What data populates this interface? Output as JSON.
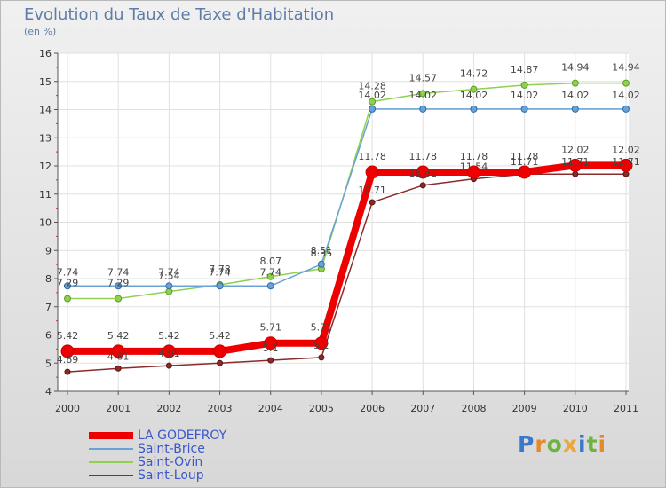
{
  "title": "Evolution du Taux de Taxe d'Habitation",
  "subtitle": "(en %)",
  "logo": {
    "text": "Proxiti",
    "letter_colors": [
      "#3a78c9",
      "#e48a2c",
      "#6db33f",
      "#e8a83c",
      "#3a78c9",
      "#6db33f",
      "#e48a2c"
    ]
  },
  "chart_data": {
    "type": "line",
    "x": [
      "2000",
      "2001",
      "2002",
      "2003",
      "2004",
      "2005",
      "2006",
      "2007",
      "2008",
      "2009",
      "2010",
      "2011"
    ],
    "ylim": [
      4,
      16
    ],
    "yticks": [
      "4",
      "5",
      "6",
      "7",
      "8",
      "9",
      "10",
      "11",
      "12",
      "13",
      "14",
      "15",
      "16"
    ],
    "grid": true,
    "legend_position": "bottom-left",
    "series": [
      {
        "name": "LA GODEFROY",
        "color": "#ee0000",
        "values": [
          5.42,
          5.42,
          5.42,
          5.42,
          5.71,
          5.71,
          11.78,
          11.78,
          11.78,
          11.78,
          12.02,
          12.02
        ],
        "labels": [
          "5.42",
          "5.42",
          "5.42",
          "5.42",
          "5.71",
          "5.71",
          "11.78",
          "11.78",
          "11.78",
          "11.78",
          "12.02",
          "12.02"
        ]
      },
      {
        "name": "Saint-Brice",
        "color": "#6aa2d6",
        "values": [
          7.74,
          7.74,
          7.74,
          7.74,
          7.74,
          8.51,
          14.02,
          14.02,
          14.02,
          14.02,
          14.02,
          14.02
        ],
        "labels": [
          "7.74",
          "7.74",
          "7.74",
          "7.74",
          "7.74",
          "8.51",
          "14.02",
          "14.02",
          "14.02",
          "14.02",
          "14.02",
          "14.02"
        ]
      },
      {
        "name": "Saint-Ovin",
        "color": "#8fd14f",
        "values": [
          7.29,
          7.29,
          7.54,
          7.78,
          8.07,
          8.35,
          14.28,
          14.57,
          14.72,
          14.87,
          14.94,
          14.94
        ],
        "labels": [
          "7.29",
          "7.29",
          "7.54",
          "7.78",
          "8.07",
          "8.35",
          "14.28",
          "14.57",
          "14.72",
          "14.87",
          "14.94",
          "14.94"
        ]
      },
      {
        "name": "Saint-Loup",
        "color": "#8b2a2a",
        "values": [
          4.69,
          4.81,
          4.91,
          5.0,
          5.1,
          5.2,
          10.71,
          11.31,
          11.54,
          11.71,
          11.71,
          11.71
        ],
        "labels": [
          "4.69",
          "4.81",
          "4.91",
          "",
          "5.1",
          "5.2",
          "10.71",
          "11.31",
          "11.54",
          "11.71",
          "11.71",
          "11.71"
        ]
      }
    ]
  }
}
